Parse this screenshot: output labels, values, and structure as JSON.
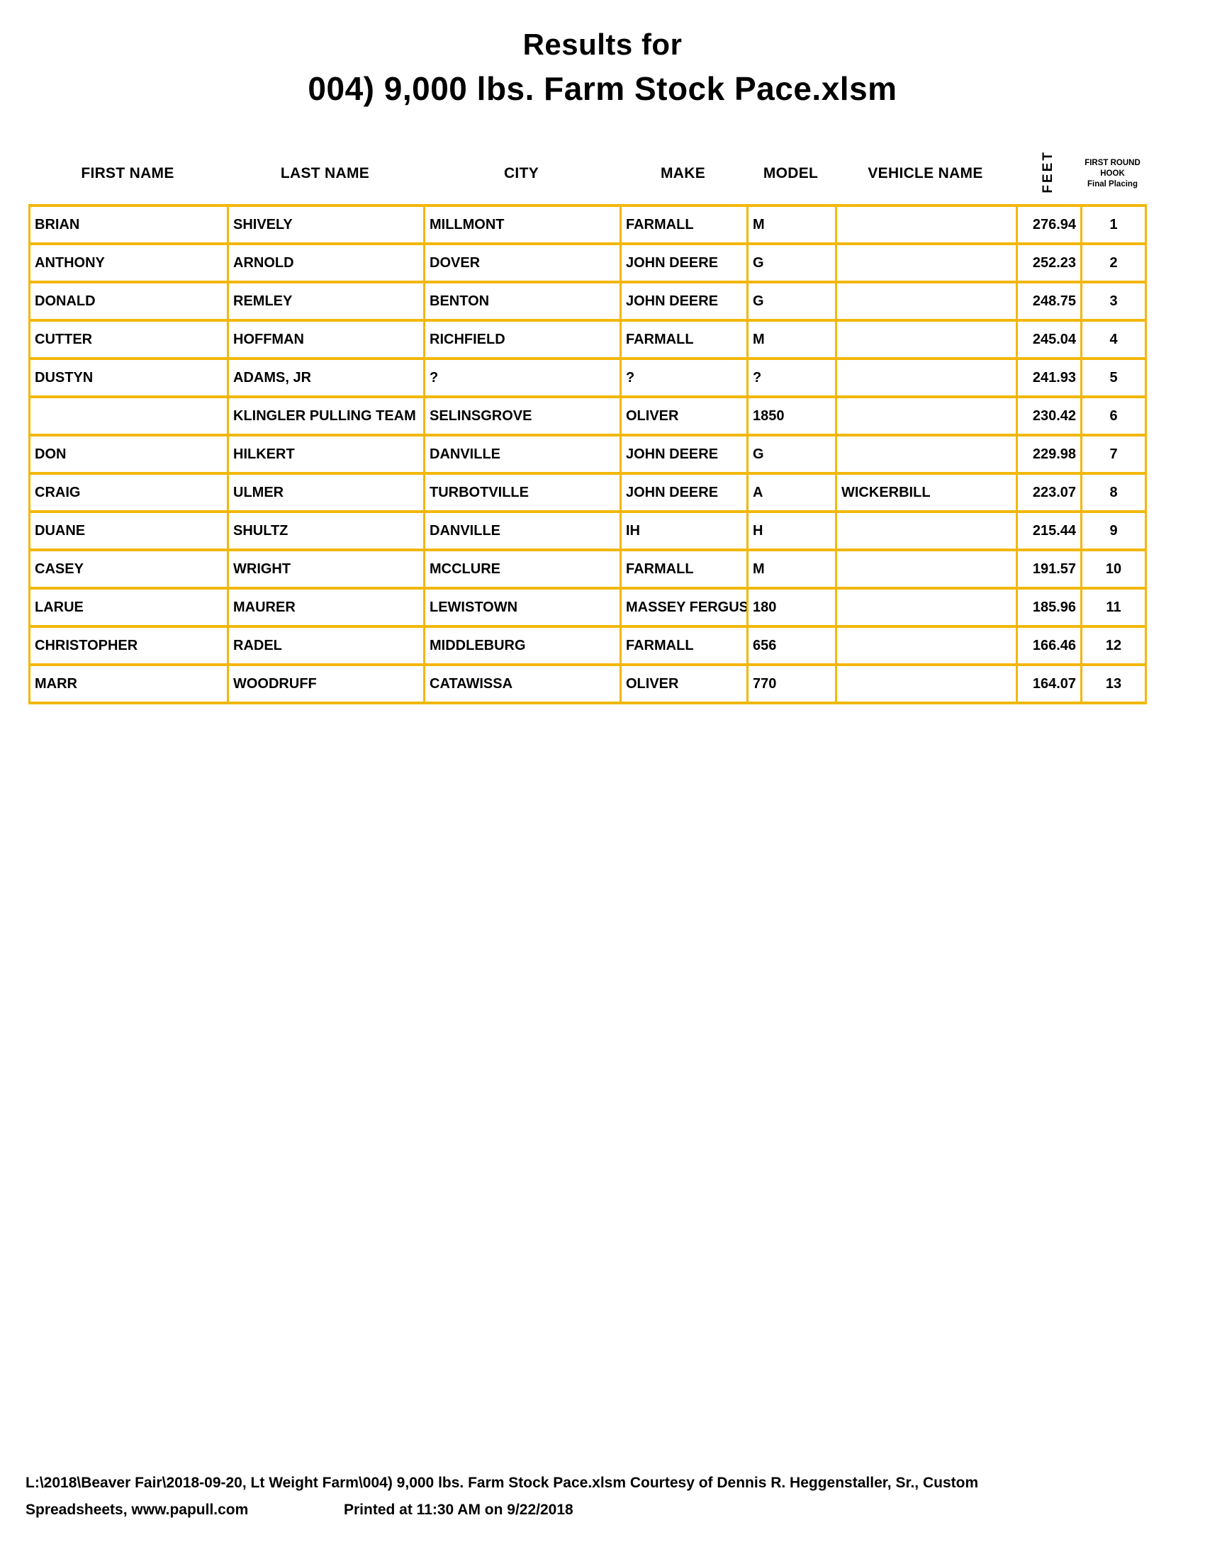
{
  "title": {
    "line1": "Results for",
    "line2": "004) 9,000 lbs. Farm Stock Pace.xlsm"
  },
  "table": {
    "headers": [
      "FIRST NAME",
      "LAST NAME",
      "CITY",
      "MAKE",
      "MODEL",
      "VEHICLE NAME"
    ],
    "feet_header": "FEET",
    "placing_header": {
      "line1": "FIRST ROUND",
      "line2": "HOOK",
      "line3": "Final Placing"
    },
    "rows": [
      {
        "first": "BRIAN",
        "last": "SHIVELY",
        "city": "MILLMONT",
        "make": "FARMALL",
        "model": "M",
        "vehicle": "",
        "feet": "276.94",
        "placing": "1"
      },
      {
        "first": "ANTHONY",
        "last": "ARNOLD",
        "city": "DOVER",
        "make": "JOHN DEERE",
        "model": "G",
        "vehicle": "",
        "feet": "252.23",
        "placing": "2"
      },
      {
        "first": "DONALD",
        "last": "REMLEY",
        "city": "BENTON",
        "make": "JOHN DEERE",
        "model": "G",
        "vehicle": "",
        "feet": "248.75",
        "placing": "3"
      },
      {
        "first": "CUTTER",
        "last": "HOFFMAN",
        "city": "RICHFIELD",
        "make": "FARMALL",
        "model": "M",
        "vehicle": "",
        "feet": "245.04",
        "placing": "4"
      },
      {
        "first": "DUSTYN",
        "last": "ADAMS, JR",
        "city": "?",
        "make": "?",
        "model": "?",
        "vehicle": "",
        "feet": "241.93",
        "placing": "5"
      },
      {
        "first": "",
        "last": "KLINGLER PULLING TEAM",
        "city": "SELINSGROVE",
        "make": "OLIVER",
        "model": "1850",
        "vehicle": "",
        "feet": "230.42",
        "placing": "6"
      },
      {
        "first": "DON",
        "last": "HILKERT",
        "city": "DANVILLE",
        "make": "JOHN DEERE",
        "model": "G",
        "vehicle": "",
        "feet": "229.98",
        "placing": "7"
      },
      {
        "first": "CRAIG",
        "last": "ULMER",
        "city": "TURBOTVILLE",
        "make": "JOHN DEERE",
        "model": "A",
        "vehicle": "WICKERBILL",
        "feet": "223.07",
        "placing": "8"
      },
      {
        "first": "DUANE",
        "last": "SHULTZ",
        "city": "DANVILLE",
        "make": "IH",
        "model": "H",
        "vehicle": "",
        "feet": "215.44",
        "placing": "9"
      },
      {
        "first": "CASEY",
        "last": "WRIGHT",
        "city": "MCCLURE",
        "make": "FARMALL",
        "model": "M",
        "vehicle": "",
        "feet": "191.57",
        "placing": "10"
      },
      {
        "first": "LARUE",
        "last": "MAURER",
        "city": "LEWISTOWN",
        "make": "MASSEY FERGUSON",
        "model": "180",
        "vehicle": "",
        "feet": "185.96",
        "placing": "11"
      },
      {
        "first": "CHRISTOPHER",
        "last": "RADEL",
        "city": "MIDDLEBURG",
        "make": "FARMALL",
        "model": "656",
        "vehicle": "",
        "feet": "166.46",
        "placing": "12"
      },
      {
        "first": "MARR",
        "last": "WOODRUFF",
        "city": "CATAWISSA",
        "make": "OLIVER",
        "model": "770",
        "vehicle": "",
        "feet": "164.07",
        "placing": "13"
      }
    ]
  },
  "footer": {
    "line1": "L:\\2018\\Beaver Fair\\2018-09-20, Lt Weight Farm\\004) 9,000 lbs. Farm Stock Pace.xlsm  Courtesy of Dennis R. Heggenstaller, Sr., Custom",
    "line2_left": "Spreadsheets, www.papull.com",
    "printed": "Printed at 11:30 AM on 9/22/2018"
  },
  "colors": {
    "border": "#F2B70A"
  }
}
